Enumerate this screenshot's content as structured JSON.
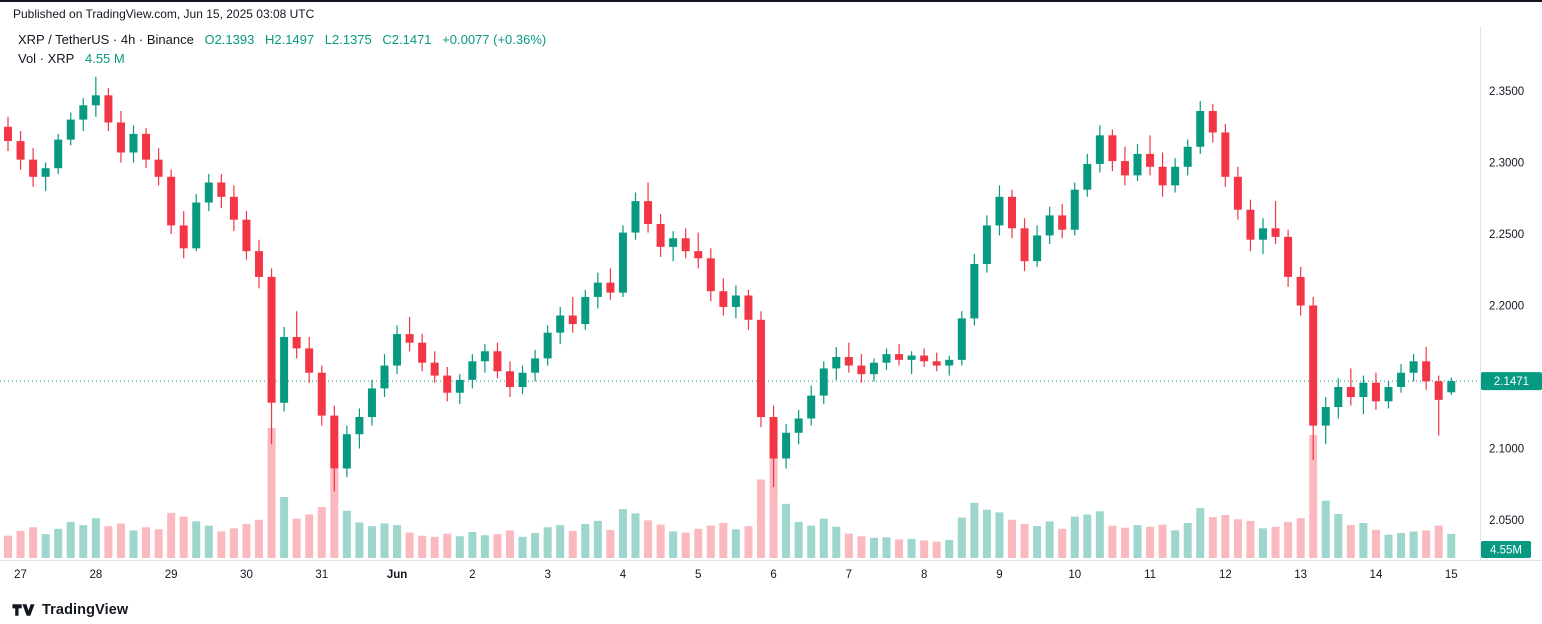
{
  "header": {
    "published": "Published on TradingView.com, Jun 15, 2025 03:08 UTC"
  },
  "legend": {
    "symbol": "XRP / TetherUS · 4h · Binance",
    "o": "O2.1393",
    "h": "H2.1497",
    "l": "L2.1375",
    "c": "C2.1471",
    "change": "+0.0077 (+0.36%)",
    "volume_label": "Vol · XRP",
    "volume_value": "4.55 M"
  },
  "footer": {
    "brand": "TradingView"
  },
  "colors": {
    "up": "#089981",
    "down": "#F23645",
    "volume_up": "rgba(8,153,129,0.40)",
    "volume_down": "rgba(242,54,69,0.35)",
    "text": "#131722",
    "separator": "#e0e3eb",
    "badge_text": "#ffffff"
  },
  "price_axis": {
    "labels": [
      {
        "text": "2.3500",
        "value": 2.35
      },
      {
        "text": "2.3000",
        "value": 2.3
      },
      {
        "text": "2.2500",
        "value": 2.25
      },
      {
        "text": "2.2000",
        "value": 2.2
      },
      {
        "text": "2.1000",
        "value": 2.1
      },
      {
        "text": "2.0500",
        "value": 2.05
      }
    ],
    "last_price_badge": "2.1471",
    "volume_badge": "4.55M"
  },
  "time_axis": {
    "ticks": [
      {
        "label": "27",
        "i": 1
      },
      {
        "label": "28",
        "i": 7
      },
      {
        "label": "29",
        "i": 13
      },
      {
        "label": "30",
        "i": 19
      },
      {
        "label": "31",
        "i": 25
      },
      {
        "label": "Jun",
        "i": 31,
        "bold": true
      },
      {
        "label": "2",
        "i": 37
      },
      {
        "label": "3",
        "i": 43
      },
      {
        "label": "4",
        "i": 49
      },
      {
        "label": "5",
        "i": 55
      },
      {
        "label": "6",
        "i": 61
      },
      {
        "label": "7",
        "i": 67
      },
      {
        "label": "8",
        "i": 73
      },
      {
        "label": "9",
        "i": 79
      },
      {
        "label": "10",
        "i": 85
      },
      {
        "label": "11",
        "i": 91
      },
      {
        "label": "12",
        "i": 97
      },
      {
        "label": "13",
        "i": 103
      },
      {
        "label": "14",
        "i": 109
      },
      {
        "label": "15",
        "i": 115
      }
    ]
  },
  "chart_data": {
    "type": "candlestick",
    "title": "XRP / TetherUS",
    "interval": "4h",
    "exchange": "Binance",
    "price_range": [
      2.04,
      2.37
    ],
    "volume_unit": "M",
    "last": {
      "o": 2.1393,
      "h": 2.1497,
      "l": 2.1375,
      "c": 2.1471,
      "change": "+0.0077",
      "change_pct": "+0.36%",
      "volume_m": 4.55
    },
    "columns": [
      "open",
      "high",
      "low",
      "close",
      "volume_m"
    ],
    "candles": [
      [
        2.325,
        2.332,
        2.308,
        2.315,
        4.2
      ],
      [
        2.315,
        2.322,
        2.295,
        2.302,
        5.1
      ],
      [
        2.302,
        2.31,
        2.283,
        2.29,
        5.8
      ],
      [
        2.29,
        2.3,
        2.28,
        2.296,
        4.5
      ],
      [
        2.296,
        2.32,
        2.292,
        2.316,
        5.5
      ],
      [
        2.316,
        2.335,
        2.312,
        2.33,
        6.8
      ],
      [
        2.33,
        2.345,
        2.322,
        2.34,
        6.2
      ],
      [
        2.34,
        2.36,
        2.332,
        2.347,
        7.5
      ],
      [
        2.347,
        2.352,
        2.322,
        2.328,
        6.0
      ],
      [
        2.328,
        2.336,
        2.3,
        2.307,
        6.5
      ],
      [
        2.307,
        2.326,
        2.3,
        2.32,
        5.2
      ],
      [
        2.32,
        2.324,
        2.296,
        2.302,
        5.8
      ],
      [
        2.302,
        2.31,
        2.284,
        2.29,
        5.4
      ],
      [
        2.29,
        2.295,
        2.25,
        2.256,
        8.5
      ],
      [
        2.256,
        2.266,
        2.233,
        2.24,
        7.8
      ],
      [
        2.24,
        2.278,
        2.238,
        2.272,
        6.9
      ],
      [
        2.272,
        2.292,
        2.266,
        2.286,
        6.1
      ],
      [
        2.286,
        2.292,
        2.268,
        2.276,
        5.0
      ],
      [
        2.276,
        2.284,
        2.252,
        2.26,
        5.6
      ],
      [
        2.26,
        2.266,
        2.232,
        2.238,
        6.4
      ],
      [
        2.238,
        2.246,
        2.212,
        2.22,
        7.2
      ],
      [
        2.22,
        2.226,
        2.103,
        2.132,
        24.5
      ],
      [
        2.132,
        2.185,
        2.126,
        2.178,
        11.5
      ],
      [
        2.178,
        2.196,
        2.163,
        2.17,
        7.4
      ],
      [
        2.17,
        2.178,
        2.146,
        2.153,
        8.2
      ],
      [
        2.153,
        2.158,
        2.116,
        2.123,
        9.6
      ],
      [
        2.123,
        2.13,
        2.07,
        2.086,
        16.8
      ],
      [
        2.086,
        2.116,
        2.08,
        2.11,
        8.9
      ],
      [
        2.11,
        2.128,
        2.1,
        2.122,
        6.7
      ],
      [
        2.122,
        2.148,
        2.116,
        2.142,
        6.0
      ],
      [
        2.142,
        2.166,
        2.136,
        2.158,
        6.5
      ],
      [
        2.158,
        2.186,
        2.152,
        2.18,
        6.2
      ],
      [
        2.18,
        2.192,
        2.168,
        2.174,
        4.8
      ],
      [
        2.174,
        2.18,
        2.154,
        2.16,
        4.2
      ],
      [
        2.16,
        2.168,
        2.146,
        2.151,
        4.0
      ],
      [
        2.151,
        2.157,
        2.133,
        2.139,
        4.6
      ],
      [
        2.139,
        2.152,
        2.131,
        2.148,
        4.1
      ],
      [
        2.148,
        2.166,
        2.142,
        2.161,
        4.9
      ],
      [
        2.161,
        2.173,
        2.153,
        2.168,
        4.3
      ],
      [
        2.168,
        2.174,
        2.149,
        2.154,
        4.5
      ],
      [
        2.154,
        2.161,
        2.136,
        2.143,
        5.2
      ],
      [
        2.143,
        2.158,
        2.138,
        2.153,
        4.0
      ],
      [
        2.153,
        2.169,
        2.147,
        2.163,
        4.7
      ],
      [
        2.163,
        2.186,
        2.158,
        2.181,
        5.8
      ],
      [
        2.181,
        2.199,
        2.173,
        2.193,
        6.2
      ],
      [
        2.193,
        2.206,
        2.181,
        2.187,
        5.1
      ],
      [
        2.187,
        2.211,
        2.183,
        2.206,
        6.4
      ],
      [
        2.206,
        2.223,
        2.198,
        2.216,
        7.0
      ],
      [
        2.216,
        2.226,
        2.204,
        2.209,
        5.3
      ],
      [
        2.209,
        2.256,
        2.206,
        2.251,
        9.2
      ],
      [
        2.251,
        2.279,
        2.246,
        2.273,
        8.4
      ],
      [
        2.273,
        2.286,
        2.251,
        2.257,
        7.1
      ],
      [
        2.257,
        2.264,
        2.234,
        2.241,
        6.3
      ],
      [
        2.241,
        2.252,
        2.231,
        2.247,
        5.0
      ],
      [
        2.247,
        2.254,
        2.233,
        2.238,
        4.8
      ],
      [
        2.238,
        2.251,
        2.226,
        2.233,
        5.5
      ],
      [
        2.233,
        2.24,
        2.203,
        2.21,
        6.1
      ],
      [
        2.21,
        2.219,
        2.193,
        2.199,
        6.6
      ],
      [
        2.199,
        2.214,
        2.191,
        2.207,
        5.4
      ],
      [
        2.207,
        2.211,
        2.183,
        2.19,
        6.0
      ],
      [
        2.19,
        2.196,
        2.115,
        2.122,
        14.8
      ],
      [
        2.122,
        2.13,
        2.073,
        2.093,
        19.5
      ],
      [
        2.093,
        2.117,
        2.086,
        2.111,
        10.2
      ],
      [
        2.111,
        2.127,
        2.103,
        2.121,
        6.8
      ],
      [
        2.121,
        2.144,
        2.116,
        2.137,
        6.1
      ],
      [
        2.137,
        2.161,
        2.131,
        2.156,
        7.4
      ],
      [
        2.156,
        2.171,
        2.148,
        2.164,
        5.9
      ],
      [
        2.164,
        2.174,
        2.153,
        2.158,
        4.6
      ],
      [
        2.158,
        2.166,
        2.146,
        2.152,
        4.1
      ],
      [
        2.152,
        2.163,
        2.147,
        2.16,
        3.8
      ],
      [
        2.16,
        2.17,
        2.155,
        2.166,
        3.9
      ],
      [
        2.166,
        2.173,
        2.158,
        2.162,
        3.5
      ],
      [
        2.162,
        2.168,
        2.152,
        2.165,
        3.6
      ],
      [
        2.165,
        2.17,
        2.157,
        2.161,
        3.3
      ],
      [
        2.161,
        2.167,
        2.154,
        2.158,
        3.1
      ],
      [
        2.158,
        2.165,
        2.151,
        2.162,
        3.4
      ],
      [
        2.162,
        2.196,
        2.158,
        2.191,
        7.6
      ],
      [
        2.191,
        2.236,
        2.186,
        2.229,
        10.4
      ],
      [
        2.229,
        2.263,
        2.223,
        2.256,
        9.1
      ],
      [
        2.256,
        2.284,
        2.249,
        2.276,
        8.6
      ],
      [
        2.276,
        2.281,
        2.247,
        2.254,
        7.2
      ],
      [
        2.254,
        2.261,
        2.224,
        2.231,
        6.4
      ],
      [
        2.231,
        2.256,
        2.227,
        2.249,
        6.0
      ],
      [
        2.249,
        2.269,
        2.243,
        2.263,
        6.9
      ],
      [
        2.263,
        2.271,
        2.247,
        2.253,
        5.5
      ],
      [
        2.253,
        2.286,
        2.249,
        2.281,
        7.8
      ],
      [
        2.281,
        2.306,
        2.276,
        2.299,
        8.2
      ],
      [
        2.299,
        2.326,
        2.293,
        2.319,
        8.8
      ],
      [
        2.319,
        2.323,
        2.294,
        2.301,
        6.1
      ],
      [
        2.301,
        2.311,
        2.284,
        2.291,
        5.7
      ],
      [
        2.291,
        2.313,
        2.287,
        2.306,
        6.2
      ],
      [
        2.306,
        2.319,
        2.291,
        2.297,
        5.9
      ],
      [
        2.297,
        2.307,
        2.276,
        2.284,
        6.3
      ],
      [
        2.284,
        2.303,
        2.279,
        2.297,
        5.2
      ],
      [
        2.297,
        2.316,
        2.291,
        2.311,
        6.6
      ],
      [
        2.311,
        2.343,
        2.306,
        2.336,
        9.4
      ],
      [
        2.336,
        2.341,
        2.314,
        2.321,
        7.7
      ],
      [
        2.321,
        2.327,
        2.283,
        2.29,
        8.1
      ],
      [
        2.29,
        2.297,
        2.26,
        2.267,
        7.3
      ],
      [
        2.267,
        2.274,
        2.238,
        2.246,
        7.0
      ],
      [
        2.246,
        2.261,
        2.236,
        2.254,
        5.6
      ],
      [
        2.254,
        2.273,
        2.243,
        2.248,
        5.9
      ],
      [
        2.248,
        2.253,
        2.213,
        2.22,
        6.8
      ],
      [
        2.22,
        2.227,
        2.193,
        2.2,
        7.5
      ],
      [
        2.2,
        2.206,
        2.092,
        2.116,
        23.2
      ],
      [
        2.116,
        2.136,
        2.103,
        2.129,
        10.8
      ],
      [
        2.129,
        2.149,
        2.121,
        2.143,
        8.3
      ],
      [
        2.143,
        2.156,
        2.13,
        2.136,
        6.2
      ],
      [
        2.136,
        2.151,
        2.124,
        2.146,
        6.6
      ],
      [
        2.146,
        2.153,
        2.127,
        2.133,
        5.3
      ],
      [
        2.133,
        2.147,
        2.128,
        2.143,
        4.4
      ],
      [
        2.143,
        2.159,
        2.139,
        2.153,
        4.7
      ],
      [
        2.153,
        2.166,
        2.147,
        2.161,
        5.0
      ],
      [
        2.161,
        2.171,
        2.141,
        2.147,
        5.2
      ],
      [
        2.147,
        2.151,
        2.109,
        2.134,
        6.1
      ],
      [
        2.1393,
        2.1497,
        2.1375,
        2.1471,
        4.55
      ]
    ]
  }
}
